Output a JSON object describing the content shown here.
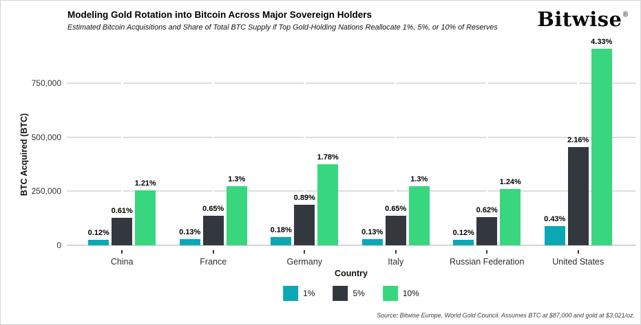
{
  "header": {
    "title": "Modeling Gold Rotation into Bitcoin Across Major Sovereign Holders",
    "subtitle": "Estimated Bitcoin Acquisitions and Share of Total BTC Supply if Top Gold-Holding Nations Reallocate 1%, 5%, or 10% of Reserves",
    "logo_text": "Bitwise",
    "logo_reg": "®"
  },
  "chart_data": {
    "type": "bar",
    "title": "Modeling Gold Rotation into Bitcoin Across Major Sovereign Holders",
    "subtitle": "Estimated Bitcoin Acquisitions and Share of Total BTC Supply if Top Gold-Holding Nations Reallocate 1%, 5%, or 10% of Reserves",
    "xlabel": "Country",
    "ylabel": "BTC Acquired (BTC)",
    "categories": [
      "China",
      "France",
      "Germany",
      "Italy",
      "Russian Federation",
      "United States"
    ],
    "series": [
      {
        "name": "1%",
        "color": "#0ca7b5",
        "btc_values": [
          25200,
          27300,
          37800,
          27300,
          25200,
          90300
        ],
        "labels": [
          "0.12%",
          "0.13%",
          "0.18%",
          "0.13%",
          "0.12%",
          "0.43%"
        ]
      },
      {
        "name": "5%",
        "color": "#33383e",
        "btc_values": [
          128100,
          136500,
          186900,
          136500,
          130200,
          453600
        ],
        "labels": [
          "0.61%",
          "0.65%",
          "0.89%",
          "0.65%",
          "0.62%",
          "2.16%"
        ]
      },
      {
        "name": "10%",
        "color": "#38d77f",
        "btc_values": [
          254100,
          273000,
          373800,
          273000,
          260400,
          909300
        ],
        "labels": [
          "1.21%",
          "1.3%",
          "1.78%",
          "1.3%",
          "1.24%",
          "4.33%"
        ]
      }
    ],
    "yticks": [
      0,
      250000,
      500000,
      750000
    ],
    "ytick_labels": [
      "0",
      "250,000",
      "500,000",
      "750,000"
    ],
    "ylim": [
      0,
      930000
    ],
    "grid": "horizontal",
    "legend_position": "bottom"
  },
  "footer": {
    "source": "Source: Bitwise Europe, World Gold Council. Assumes BTC at $87,000 and gold at $3,021/oz."
  }
}
